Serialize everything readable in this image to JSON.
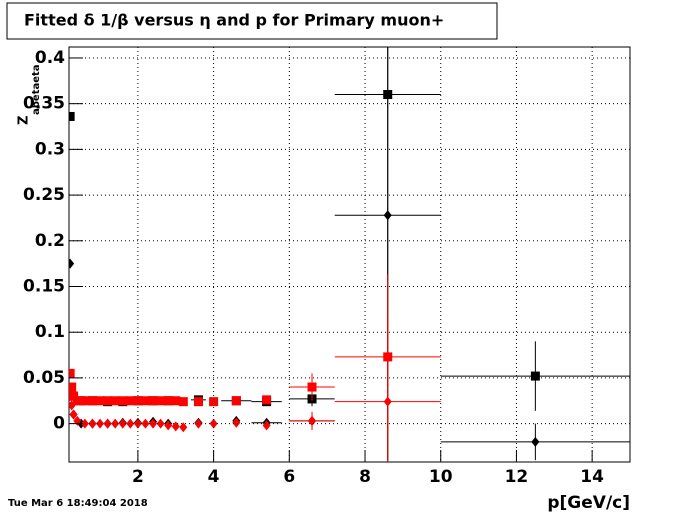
{
  "chart_data": {
    "type": "errorbar-scatter",
    "title": "Fitted δ 1/β versus η and p for Primary muon+",
    "x_label": "p[GeV/c]",
    "y_label": "Z",
    "y_label_sub": "abetaeta",
    "timestamp": "Tue Mar  6 18:49:04 2018",
    "xlim": [
      0.18,
      15
    ],
    "ylim": [
      -0.042,
      0.412
    ],
    "xticks": [
      2,
      4,
      6,
      8,
      10,
      12,
      14
    ],
    "yticks": [
      0,
      0.05,
      0.1,
      0.15,
      0.2,
      0.25,
      0.3,
      0.35,
      0.4
    ],
    "grid": true,
    "series": [
      {
        "color": "#000000",
        "marker": "square",
        "x": [
          0.21,
          0.3,
          0.5,
          0.8,
          1.2,
          1.6,
          2.0,
          2.4,
          2.8,
          3.6,
          4.6,
          5.4,
          6.6,
          8.6,
          12.5
        ],
        "values": [
          0.336,
          0.03,
          0.025,
          0.025,
          0.024,
          0.024,
          0.025,
          0.025,
          0.025,
          0.026,
          0.025,
          0.024,
          0.027,
          0.36,
          0.052
        ],
        "xerr": [
          0,
          0,
          0,
          0,
          0,
          0,
          0,
          0,
          0,
          0.2,
          0.4,
          0.4,
          0.6,
          1.4,
          2.5
        ],
        "yerr": [
          0,
          0,
          0,
          0,
          0,
          0,
          0,
          0,
          0,
          0.003,
          0.003,
          0.004,
          0.008,
          0.4,
          0.038
        ]
      },
      {
        "color": "#000000",
        "marker": "diamond",
        "x": [
          0.21,
          0.3,
          0.5,
          0.8,
          1.2,
          1.6,
          2.0,
          2.4,
          2.8,
          3.6,
          4.6,
          5.4,
          6.6,
          8.6,
          12.5
        ],
        "values": [
          0.175,
          0.01,
          0.0,
          0.0,
          0.0,
          0.001,
          0.001,
          0.002,
          0.0,
          0.001,
          0.003,
          0.001,
          0.003,
          0.228,
          -0.02
        ],
        "xerr": [
          0,
          0,
          0,
          0,
          0,
          0,
          0,
          0,
          0,
          0,
          0,
          0.4,
          0.6,
          1.4,
          2.5
        ],
        "yerr": [
          0,
          0,
          0,
          0,
          0,
          0,
          0,
          0,
          0,
          0,
          0,
          0.003,
          0.008,
          0.3,
          0.02
        ]
      },
      {
        "color": "#ff0000",
        "marker": "square",
        "x": [
          0.21,
          0.25,
          0.3,
          0.4,
          0.6,
          0.8,
          1.0,
          1.2,
          1.4,
          1.6,
          1.8,
          2.0,
          2.2,
          2.4,
          2.6,
          2.8,
          3.0,
          3.2,
          3.6,
          4.0,
          4.6,
          5.4,
          6.6,
          8.6
        ],
        "values": [
          0.055,
          0.04,
          0.03,
          0.025,
          0.025,
          0.025,
          0.025,
          0.025,
          0.025,
          0.025,
          0.025,
          0.025,
          0.025,
          0.025,
          0.025,
          0.025,
          0.025,
          0.024,
          0.024,
          0.024,
          0.025,
          0.026,
          0.04,
          0.073
        ],
        "xerr": [
          0,
          0,
          0,
          0,
          0,
          0,
          0,
          0,
          0,
          0,
          0,
          0,
          0,
          0,
          0,
          0,
          0,
          0,
          0,
          0,
          0,
          0,
          0.6,
          1.4
        ],
        "yerr": [
          0,
          0,
          0,
          0,
          0,
          0,
          0,
          0,
          0,
          0,
          0,
          0,
          0,
          0,
          0,
          0,
          0,
          0,
          0,
          0,
          0,
          0,
          0.015,
          0.09
        ]
      },
      {
        "color": "#ff0000",
        "marker": "diamond",
        "x": [
          0.21,
          0.25,
          0.3,
          0.4,
          0.6,
          0.8,
          1.0,
          1.2,
          1.4,
          1.6,
          1.8,
          2.0,
          2.2,
          2.4,
          2.6,
          2.8,
          3.0,
          3.2,
          3.6,
          4.0,
          4.6,
          5.4,
          6.6,
          8.6
        ],
        "values": [
          0.038,
          0.02,
          0.01,
          0.003,
          0.0,
          0.0,
          0.0,
          0.0,
          0.0,
          0.0,
          0.0,
          0.0,
          0.0,
          0.0,
          0.0,
          -0.002,
          -0.003,
          -0.004,
          0.0,
          0.0,
          0.001,
          -0.002,
          0.003,
          0.024
        ],
        "xerr": [
          0,
          0,
          0,
          0,
          0,
          0,
          0,
          0,
          0,
          0,
          0,
          0,
          0,
          0,
          0,
          0,
          0,
          0,
          0,
          0,
          0,
          0,
          0.6,
          1.4
        ],
        "yerr": [
          0,
          0,
          0,
          0,
          0,
          0,
          0,
          0,
          0,
          0,
          0,
          0,
          0,
          0,
          0,
          0,
          0,
          0,
          0,
          0,
          0,
          0,
          0.01,
          0.1
        ]
      }
    ]
  }
}
